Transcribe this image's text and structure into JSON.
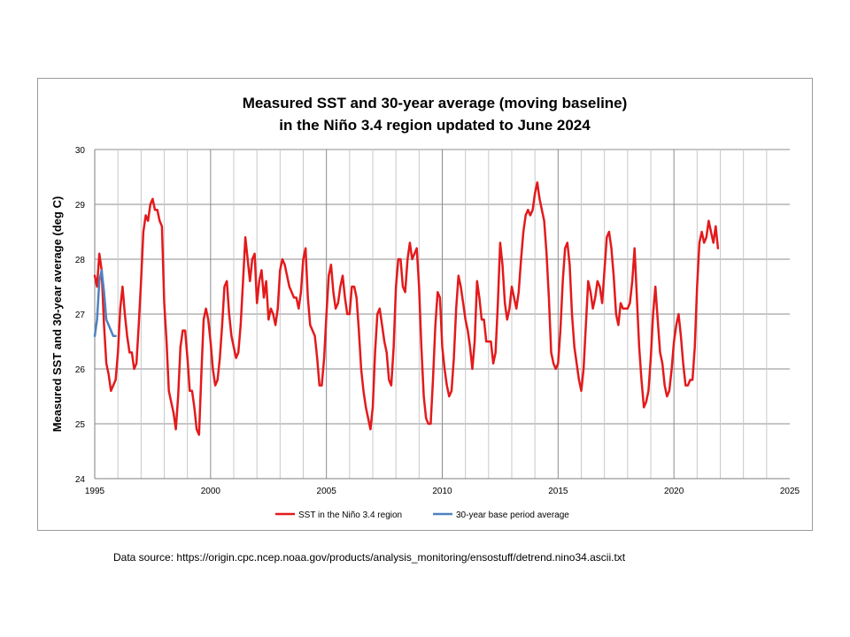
{
  "footer": {
    "source_label": "Data source:",
    "source_url": "https://origin.cpc.ncep.noaa.gov/products/analysis_monitoring/ensostuff/detrend.nino34.ascii.txt"
  },
  "chart_data": {
    "type": "line",
    "title": [
      "Measured SST and 30-year average (moving baseline)",
      "in the Niño 3.4 region updated to June 2024"
    ],
    "xlabel": "",
    "ylabel": "Measured SST and 30-year average (deg C)",
    "xlim": [
      1995,
      2025
    ],
    "ylim": [
      24,
      30
    ],
    "xticks": [
      1995,
      2000,
      2005,
      2010,
      2015,
      2020,
      2025
    ],
    "yticks": [
      24,
      25,
      26,
      27,
      28,
      29,
      30
    ],
    "vertical_gridlines_every_year": true,
    "horizontal_gridlines": true,
    "legend_position": "bottom",
    "colors": {
      "sst": "#e31a1c",
      "baseline": "#4f81bd",
      "grid_major": "#8c8c8c",
      "grid_minor": "#c8c8c8"
    },
    "series": [
      {
        "name": "SST in the Niño 3.4 region",
        "color": "#e31a1c",
        "points": [
          [
            1995.0,
            27.7
          ],
          [
            1995.1,
            27.5
          ],
          [
            1995.2,
            28.1
          ],
          [
            1995.3,
            27.8
          ],
          [
            1995.4,
            26.8
          ],
          [
            1995.5,
            26.1
          ],
          [
            1995.6,
            25.9
          ],
          [
            1995.7,
            25.6
          ],
          [
            1995.8,
            25.7
          ],
          [
            1995.9,
            25.8
          ],
          [
            1996.0,
            26.3
          ],
          [
            1996.1,
            27.1
          ],
          [
            1996.2,
            27.5
          ],
          [
            1996.3,
            27.0
          ],
          [
            1996.4,
            26.6
          ],
          [
            1996.5,
            26.3
          ],
          [
            1996.6,
            26.3
          ],
          [
            1996.7,
            26.0
          ],
          [
            1996.8,
            26.1
          ],
          [
            1996.9,
            26.8
          ],
          [
            1997.0,
            27.6
          ],
          [
            1997.1,
            28.5
          ],
          [
            1997.2,
            28.8
          ],
          [
            1997.3,
            28.7
          ],
          [
            1997.4,
            29.0
          ],
          [
            1997.5,
            29.1
          ],
          [
            1997.6,
            28.9
          ],
          [
            1997.7,
            28.9
          ],
          [
            1997.8,
            28.7
          ],
          [
            1997.9,
            28.6
          ],
          [
            1998.0,
            27.2
          ],
          [
            1998.1,
            26.5
          ],
          [
            1998.2,
            25.6
          ],
          [
            1998.3,
            25.4
          ],
          [
            1998.4,
            25.2
          ],
          [
            1998.5,
            24.9
          ],
          [
            1998.6,
            25.5
          ],
          [
            1998.7,
            26.4
          ],
          [
            1998.8,
            26.7
          ],
          [
            1998.9,
            26.7
          ],
          [
            1999.0,
            26.2
          ],
          [
            1999.1,
            25.6
          ],
          [
            1999.2,
            25.6
          ],
          [
            1999.3,
            25.3
          ],
          [
            1999.4,
            24.9
          ],
          [
            1999.5,
            24.8
          ],
          [
            1999.6,
            25.9
          ],
          [
            1999.7,
            26.9
          ],
          [
            1999.8,
            27.1
          ],
          [
            1999.9,
            26.9
          ],
          [
            2000.0,
            26.5
          ],
          [
            2000.1,
            26.0
          ],
          [
            2000.2,
            25.7
          ],
          [
            2000.3,
            25.8
          ],
          [
            2000.4,
            26.2
          ],
          [
            2000.5,
            26.8
          ],
          [
            2000.6,
            27.5
          ],
          [
            2000.7,
            27.6
          ],
          [
            2000.8,
            27.0
          ],
          [
            2000.9,
            26.6
          ],
          [
            2001.0,
            26.4
          ],
          [
            2001.1,
            26.2
          ],
          [
            2001.2,
            26.3
          ],
          [
            2001.3,
            26.8
          ],
          [
            2001.4,
            27.6
          ],
          [
            2001.5,
            28.4
          ],
          [
            2001.6,
            28.0
          ],
          [
            2001.7,
            27.6
          ],
          [
            2001.8,
            28.0
          ],
          [
            2001.9,
            28.1
          ],
          [
            2002.0,
            27.2
          ],
          [
            2002.1,
            27.6
          ],
          [
            2002.2,
            27.8
          ],
          [
            2002.3,
            27.3
          ],
          [
            2002.4,
            27.6
          ],
          [
            2002.5,
            26.9
          ],
          [
            2002.6,
            27.1
          ],
          [
            2002.7,
            27.0
          ],
          [
            2002.8,
            26.8
          ],
          [
            2002.9,
            27.1
          ],
          [
            2003.0,
            27.8
          ],
          [
            2003.1,
            28.0
          ],
          [
            2003.2,
            27.9
          ],
          [
            2003.3,
            27.7
          ],
          [
            2003.4,
            27.5
          ],
          [
            2003.5,
            27.4
          ],
          [
            2003.6,
            27.3
          ],
          [
            2003.7,
            27.3
          ],
          [
            2003.8,
            27.1
          ],
          [
            2003.9,
            27.4
          ],
          [
            2004.0,
            28.0
          ],
          [
            2004.1,
            28.2
          ],
          [
            2004.2,
            27.3
          ],
          [
            2004.3,
            26.8
          ],
          [
            2004.4,
            26.7
          ],
          [
            2004.5,
            26.6
          ],
          [
            2004.6,
            26.2
          ],
          [
            2004.7,
            25.7
          ],
          [
            2004.8,
            25.7
          ],
          [
            2004.9,
            26.2
          ],
          [
            2005.0,
            27.0
          ],
          [
            2005.1,
            27.7
          ],
          [
            2005.2,
            27.9
          ],
          [
            2005.3,
            27.4
          ],
          [
            2005.4,
            27.1
          ],
          [
            2005.5,
            27.2
          ],
          [
            2005.6,
            27.5
          ],
          [
            2005.7,
            27.7
          ],
          [
            2005.8,
            27.3
          ],
          [
            2005.9,
            27.0
          ],
          [
            2006.0,
            27.0
          ],
          [
            2006.1,
            27.5
          ],
          [
            2006.2,
            27.5
          ],
          [
            2006.3,
            27.3
          ],
          [
            2006.4,
            26.7
          ],
          [
            2006.5,
            26.0
          ],
          [
            2006.6,
            25.6
          ],
          [
            2006.7,
            25.3
          ],
          [
            2006.8,
            25.1
          ],
          [
            2006.9,
            24.9
          ],
          [
            2007.0,
            25.3
          ],
          [
            2007.1,
            26.3
          ],
          [
            2007.2,
            27.0
          ],
          [
            2007.3,
            27.1
          ],
          [
            2007.4,
            26.8
          ],
          [
            2007.5,
            26.5
          ],
          [
            2007.6,
            26.3
          ],
          [
            2007.7,
            25.8
          ],
          [
            2007.8,
            25.7
          ],
          [
            2007.9,
            26.4
          ],
          [
            2008.0,
            27.5
          ],
          [
            2008.1,
            28.0
          ],
          [
            2008.2,
            28.0
          ],
          [
            2008.3,
            27.5
          ],
          [
            2008.4,
            27.4
          ],
          [
            2008.5,
            28.0
          ],
          [
            2008.6,
            28.3
          ],
          [
            2008.7,
            28.0
          ],
          [
            2008.8,
            28.1
          ],
          [
            2008.9,
            28.2
          ],
          [
            2009.0,
            27.5
          ],
          [
            2009.1,
            26.4
          ],
          [
            2009.2,
            25.5
          ],
          [
            2009.3,
            25.1
          ],
          [
            2009.4,
            25.0
          ],
          [
            2009.5,
            25.0
          ],
          [
            2009.6,
            25.8
          ],
          [
            2009.7,
            26.8
          ],
          [
            2009.8,
            27.4
          ],
          [
            2009.9,
            27.3
          ],
          [
            2010.0,
            26.4
          ],
          [
            2010.1,
            26.0
          ],
          [
            2010.2,
            25.7
          ],
          [
            2010.3,
            25.5
          ],
          [
            2010.4,
            25.6
          ],
          [
            2010.5,
            26.2
          ],
          [
            2010.6,
            27.1
          ],
          [
            2010.7,
            27.7
          ],
          [
            2010.8,
            27.5
          ],
          [
            2010.9,
            27.2
          ],
          [
            2011.0,
            26.9
          ],
          [
            2011.1,
            26.7
          ],
          [
            2011.2,
            26.4
          ],
          [
            2011.3,
            26.0
          ],
          [
            2011.4,
            26.5
          ],
          [
            2011.5,
            27.6
          ],
          [
            2011.6,
            27.3
          ],
          [
            2011.7,
            26.9
          ],
          [
            2011.8,
            26.9
          ],
          [
            2011.9,
            26.5
          ],
          [
            2012.0,
            26.5
          ],
          [
            2012.1,
            26.5
          ],
          [
            2012.2,
            26.1
          ],
          [
            2012.3,
            26.3
          ],
          [
            2012.4,
            27.2
          ],
          [
            2012.5,
            28.3
          ],
          [
            2012.6,
            27.9
          ],
          [
            2012.7,
            27.2
          ],
          [
            2012.8,
            26.9
          ],
          [
            2012.9,
            27.1
          ],
          [
            2013.0,
            27.5
          ],
          [
            2013.1,
            27.3
          ],
          [
            2013.2,
            27.1
          ],
          [
            2013.3,
            27.4
          ],
          [
            2013.4,
            28.0
          ],
          [
            2013.5,
            28.5
          ],
          [
            2013.6,
            28.8
          ],
          [
            2013.7,
            28.9
          ],
          [
            2013.8,
            28.8
          ],
          [
            2013.9,
            28.9
          ],
          [
            2014.0,
            29.2
          ],
          [
            2014.1,
            29.4
          ],
          [
            2014.2,
            29.1
          ],
          [
            2014.3,
            28.9
          ],
          [
            2014.4,
            28.7
          ],
          [
            2014.5,
            28.1
          ],
          [
            2014.6,
            27.3
          ],
          [
            2014.7,
            26.3
          ],
          [
            2014.8,
            26.1
          ],
          [
            2014.9,
            26.0
          ],
          [
            2015.0,
            26.1
          ],
          [
            2015.1,
            26.7
          ],
          [
            2015.2,
            27.6
          ],
          [
            2015.3,
            28.2
          ],
          [
            2015.4,
            28.3
          ],
          [
            2015.5,
            27.9
          ],
          [
            2015.6,
            27.0
          ],
          [
            2015.7,
            26.4
          ],
          [
            2015.8,
            26.1
          ],
          [
            2015.9,
            25.8
          ],
          [
            2016.0,
            25.6
          ],
          [
            2016.1,
            26.0
          ],
          [
            2016.2,
            26.8
          ],
          [
            2016.3,
            27.6
          ],
          [
            2016.4,
            27.4
          ],
          [
            2016.5,
            27.1
          ],
          [
            2016.6,
            27.3
          ],
          [
            2016.7,
            27.6
          ],
          [
            2016.8,
            27.5
          ],
          [
            2016.9,
            27.2
          ],
          [
            2017.0,
            27.8
          ],
          [
            2017.1,
            28.4
          ],
          [
            2017.2,
            28.5
          ],
          [
            2017.3,
            28.2
          ],
          [
            2017.4,
            27.7
          ],
          [
            2017.5,
            27.0
          ],
          [
            2017.6,
            26.8
          ],
          [
            2017.7,
            27.2
          ],
          [
            2017.8,
            27.1
          ],
          [
            2017.9,
            27.1
          ],
          [
            2018.0,
            27.1
          ],
          [
            2018.1,
            27.2
          ],
          [
            2018.2,
            27.6
          ],
          [
            2018.3,
            28.2
          ],
          [
            2018.4,
            27.3
          ],
          [
            2018.5,
            26.4
          ],
          [
            2018.6,
            25.8
          ],
          [
            2018.7,
            25.3
          ],
          [
            2018.8,
            25.4
          ],
          [
            2018.9,
            25.6
          ],
          [
            2019.0,
            26.2
          ],
          [
            2019.1,
            27.0
          ],
          [
            2019.2,
            27.5
          ],
          [
            2019.3,
            26.9
          ],
          [
            2019.4,
            26.3
          ],
          [
            2019.5,
            26.1
          ],
          [
            2019.6,
            25.7
          ],
          [
            2019.7,
            25.5
          ],
          [
            2019.8,
            25.6
          ],
          [
            2019.9,
            26.0
          ],
          [
            2020.0,
            26.5
          ],
          [
            2020.1,
            26.8
          ],
          [
            2020.2,
            27.0
          ],
          [
            2020.3,
            26.6
          ],
          [
            2020.4,
            26.1
          ],
          [
            2020.5,
            25.7
          ],
          [
            2020.6,
            25.7
          ],
          [
            2020.7,
            25.8
          ],
          [
            2020.8,
            25.8
          ],
          [
            2020.9,
            26.4
          ],
          [
            2021.0,
            27.5
          ],
          [
            2021.1,
            28.3
          ],
          [
            2021.2,
            28.5
          ],
          [
            2021.3,
            28.3
          ],
          [
            2021.4,
            28.4
          ],
          [
            2021.5,
            28.7
          ],
          [
            2021.6,
            28.5
          ],
          [
            2021.7,
            28.3
          ],
          [
            2021.8,
            28.6
          ],
          [
            2021.9,
            28.2
          ]
        ]
      },
      {
        "name": "30-year base period average",
        "color": "#4f81bd",
        "points": [
          [
            1995.0,
            26.6
          ],
          [
            1995.1,
            26.9
          ],
          [
            1995.2,
            27.6
          ],
          [
            1995.3,
            27.8
          ],
          [
            1995.4,
            27.4
          ],
          [
            1995.5,
            26.9
          ],
          [
            1995.6,
            26.8
          ],
          [
            1995.7,
            26.7
          ],
          [
            1995.8,
            26.6
          ],
          [
            1995.9,
            26.6
          ]
        ]
      }
    ]
  }
}
